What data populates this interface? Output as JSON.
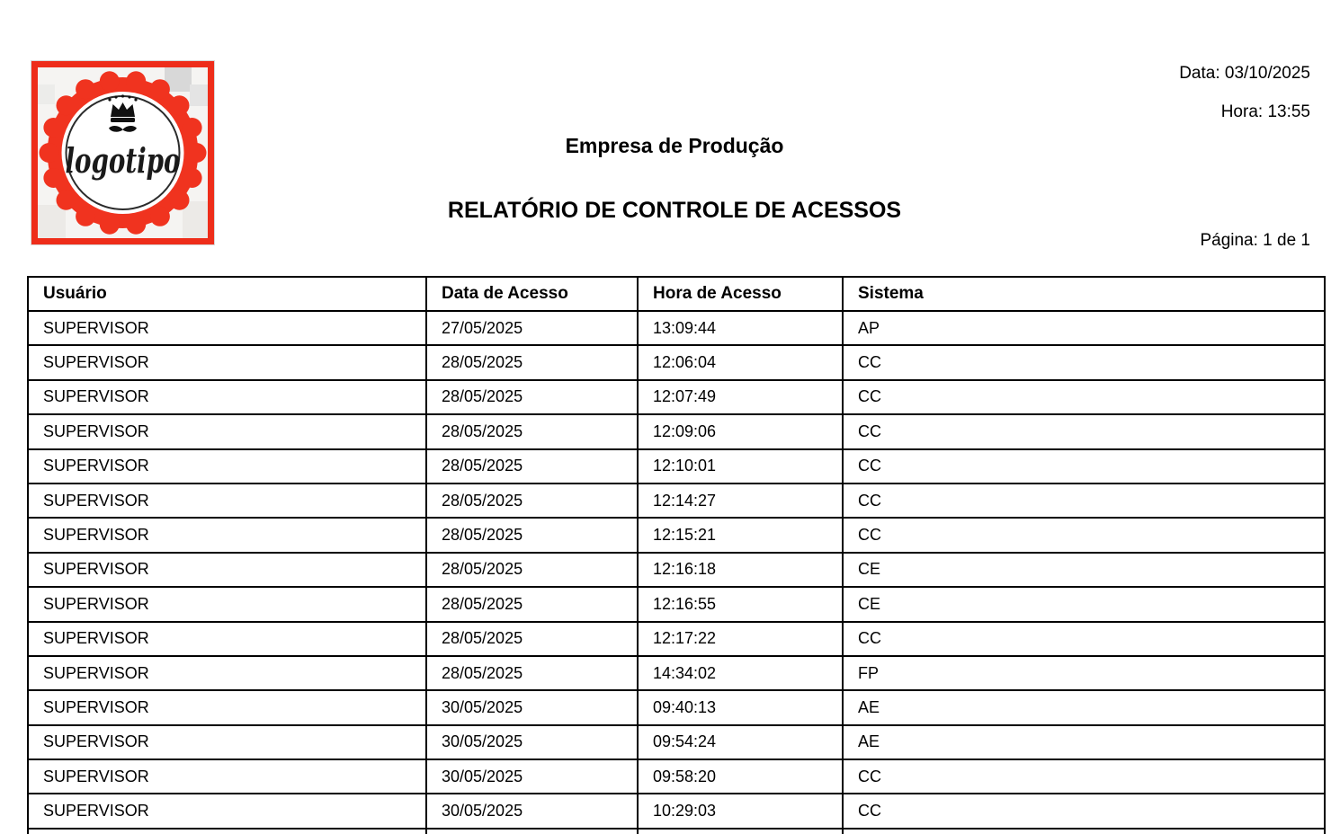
{
  "meta": {
    "date": "Data: 03/10/2025",
    "time": "Hora: 13:55",
    "page": "Página: 1 de 1"
  },
  "titles": {
    "company": "Empresa de Produção",
    "report": "RELATÓRIO DE CONTROLE DE ACESSOS"
  },
  "logo": {
    "text": "logotipo",
    "frame_color": "#ee2d1a",
    "badge_color": "#f0331f",
    "ring_color": "#2b2b2b",
    "icons": [
      "crown-icon",
      "mustache-icon"
    ]
  },
  "table": {
    "headers": [
      "Usuário",
      "Data de Acesso",
      "Hora de Acesso",
      "Sistema"
    ],
    "rows": [
      [
        "SUPERVISOR",
        "27/05/2025",
        "13:09:44",
        "AP"
      ],
      [
        "SUPERVISOR",
        "28/05/2025",
        "12:06:04",
        "CC"
      ],
      [
        "SUPERVISOR",
        "28/05/2025",
        "12:07:49",
        "CC"
      ],
      [
        "SUPERVISOR",
        "28/05/2025",
        "12:09:06",
        "CC"
      ],
      [
        "SUPERVISOR",
        "28/05/2025",
        "12:10:01",
        "CC"
      ],
      [
        "SUPERVISOR",
        "28/05/2025",
        "12:14:27",
        "CC"
      ],
      [
        "SUPERVISOR",
        "28/05/2025",
        "12:15:21",
        "CC"
      ],
      [
        "SUPERVISOR",
        "28/05/2025",
        "12:16:18",
        "CE"
      ],
      [
        "SUPERVISOR",
        "28/05/2025",
        "12:16:55",
        "CE"
      ],
      [
        "SUPERVISOR",
        "28/05/2025",
        "12:17:22",
        "CC"
      ],
      [
        "SUPERVISOR",
        "28/05/2025",
        "14:34:02",
        "FP"
      ],
      [
        "SUPERVISOR",
        "30/05/2025",
        "09:40:13",
        "AE"
      ],
      [
        "SUPERVISOR",
        "30/05/2025",
        "09:54:24",
        "AE"
      ],
      [
        "SUPERVISOR",
        "30/05/2025",
        "09:58:20",
        "CC"
      ],
      [
        "SUPERVISOR",
        "30/05/2025",
        "10:29:03",
        "CC"
      ],
      [
        "",
        "",
        "",
        ""
      ]
    ]
  }
}
